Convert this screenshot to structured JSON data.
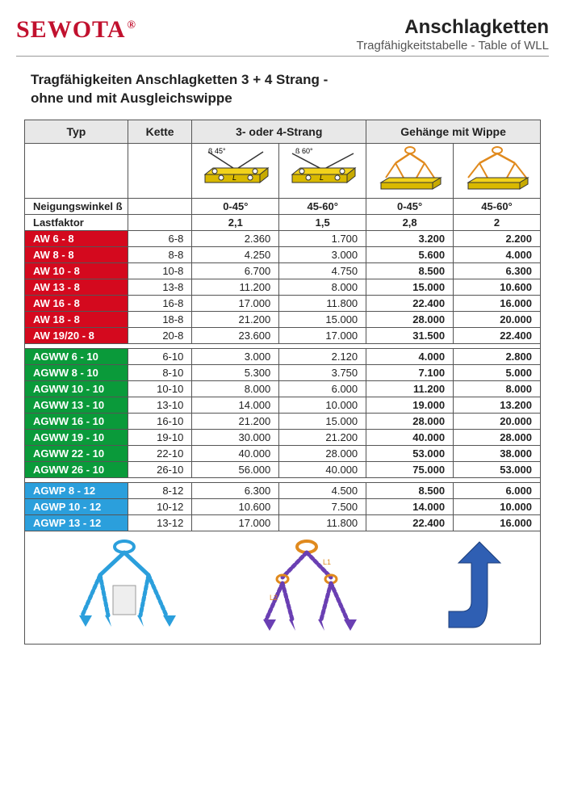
{
  "brand": "SEWOTA",
  "header": {
    "h1": "Anschlagketten",
    "h2": "Tragfähigkeitstabelle - Table of WLL"
  },
  "title_l1": "Tragfähigkeiten Anschlagketten 3 + 4 Strang -",
  "title_l2": "ohne und mit Ausgleichswippe",
  "cols": {
    "typ": "Typ",
    "kette": "Kette",
    "g34": "3- oder 4-Strang",
    "wippe": "Gehänge mit Wippe"
  },
  "angle_label": "Neigungswinkel ß",
  "angles": {
    "a": "0-45°",
    "b": "45-60°",
    "c": "0-45°",
    "d": "45-60°"
  },
  "lf_label": "Lastfaktor",
  "lf": {
    "a": "2,1",
    "b": "1,5",
    "c": "2,8",
    "d": "2"
  },
  "diag_labels": {
    "b45": "ß 45°",
    "b60": "ß 60°"
  },
  "colors": {
    "red": "#d4091e",
    "green": "#0a9a3a",
    "blue": "#2b9fdc",
    "plate": "#f2d21b",
    "plate_stroke": "#333",
    "chain1": "#2b9fdc",
    "chain2": "#6a3fb3",
    "ring": "#e08a1e",
    "arrow": "#2f5fb3",
    "header_bg": "#e8e8e8"
  },
  "sections": [
    {
      "cls": "sect-red",
      "rows": [
        {
          "t": "AW 6 - 8",
          "k": "6-8",
          "a": "2.360",
          "b": "1.700",
          "c": "3.200",
          "d": "2.200"
        },
        {
          "t": "AW 8 - 8",
          "k": "8-8",
          "a": "4.250",
          "b": "3.000",
          "c": "5.600",
          "d": "4.000"
        },
        {
          "t": "AW 10 - 8",
          "k": "10-8",
          "a": "6.700",
          "b": "4.750",
          "c": "8.500",
          "d": "6.300"
        },
        {
          "t": "AW 13 - 8",
          "k": "13-8",
          "a": "11.200",
          "b": "8.000",
          "c": "15.000",
          "d": "10.600"
        },
        {
          "t": "AW 16 - 8",
          "k": "16-8",
          "a": "17.000",
          "b": "11.800",
          "c": "22.400",
          "d": "16.000"
        },
        {
          "t": "AW 18 - 8",
          "k": "18-8",
          "a": "21.200",
          "b": "15.000",
          "c": "28.000",
          "d": "20.000"
        },
        {
          "t": "AW 19/20 - 8",
          "k": "20-8",
          "a": "23.600",
          "b": "17.000",
          "c": "31.500",
          "d": "22.400"
        }
      ]
    },
    {
      "cls": "sect-grn",
      "rows": [
        {
          "t": "AGWW 6 - 10",
          "k": "6-10",
          "a": "3.000",
          "b": "2.120",
          "c": "4.000",
          "d": "2.800"
        },
        {
          "t": "AGWW 8 - 10",
          "k": "8-10",
          "a": "5.300",
          "b": "3.750",
          "c": "7.100",
          "d": "5.000"
        },
        {
          "t": "AGWW 10 - 10",
          "k": "10-10",
          "a": "8.000",
          "b": "6.000",
          "c": "11.200",
          "d": "8.000"
        },
        {
          "t": "AGWW 13 - 10",
          "k": "13-10",
          "a": "14.000",
          "b": "10.000",
          "c": "19.000",
          "d": "13.200"
        },
        {
          "t": "AGWW 16 - 10",
          "k": "16-10",
          "a": "21.200",
          "b": "15.000",
          "c": "28.000",
          "d": "20.000"
        },
        {
          "t": "AGWW 19 - 10",
          "k": "19-10",
          "a": "30.000",
          "b": "21.200",
          "c": "40.000",
          "d": "28.000"
        },
        {
          "t": "AGWW 22 - 10",
          "k": "22-10",
          "a": "40.000",
          "b": "28.000",
          "c": "53.000",
          "d": "38.000"
        },
        {
          "t": "AGWW 26 - 10",
          "k": "26-10",
          "a": "56.000",
          "b": "40.000",
          "c": "75.000",
          "d": "53.000"
        }
      ]
    },
    {
      "cls": "sect-blu",
      "rows": [
        {
          "t": "AGWP 8 - 12",
          "k": "8-12",
          "a": "6.300",
          "b": "4.500",
          "c": "8.500",
          "d": "6.000"
        },
        {
          "t": "AGWP 10 - 12",
          "k": "10-12",
          "a": "10.600",
          "b": "7.500",
          "c": "14.000",
          "d": "10.000"
        },
        {
          "t": "AGWP 13 - 12",
          "k": "13-12",
          "a": "17.000",
          "b": "11.800",
          "c": "22.400",
          "d": "16.000"
        }
      ]
    }
  ]
}
